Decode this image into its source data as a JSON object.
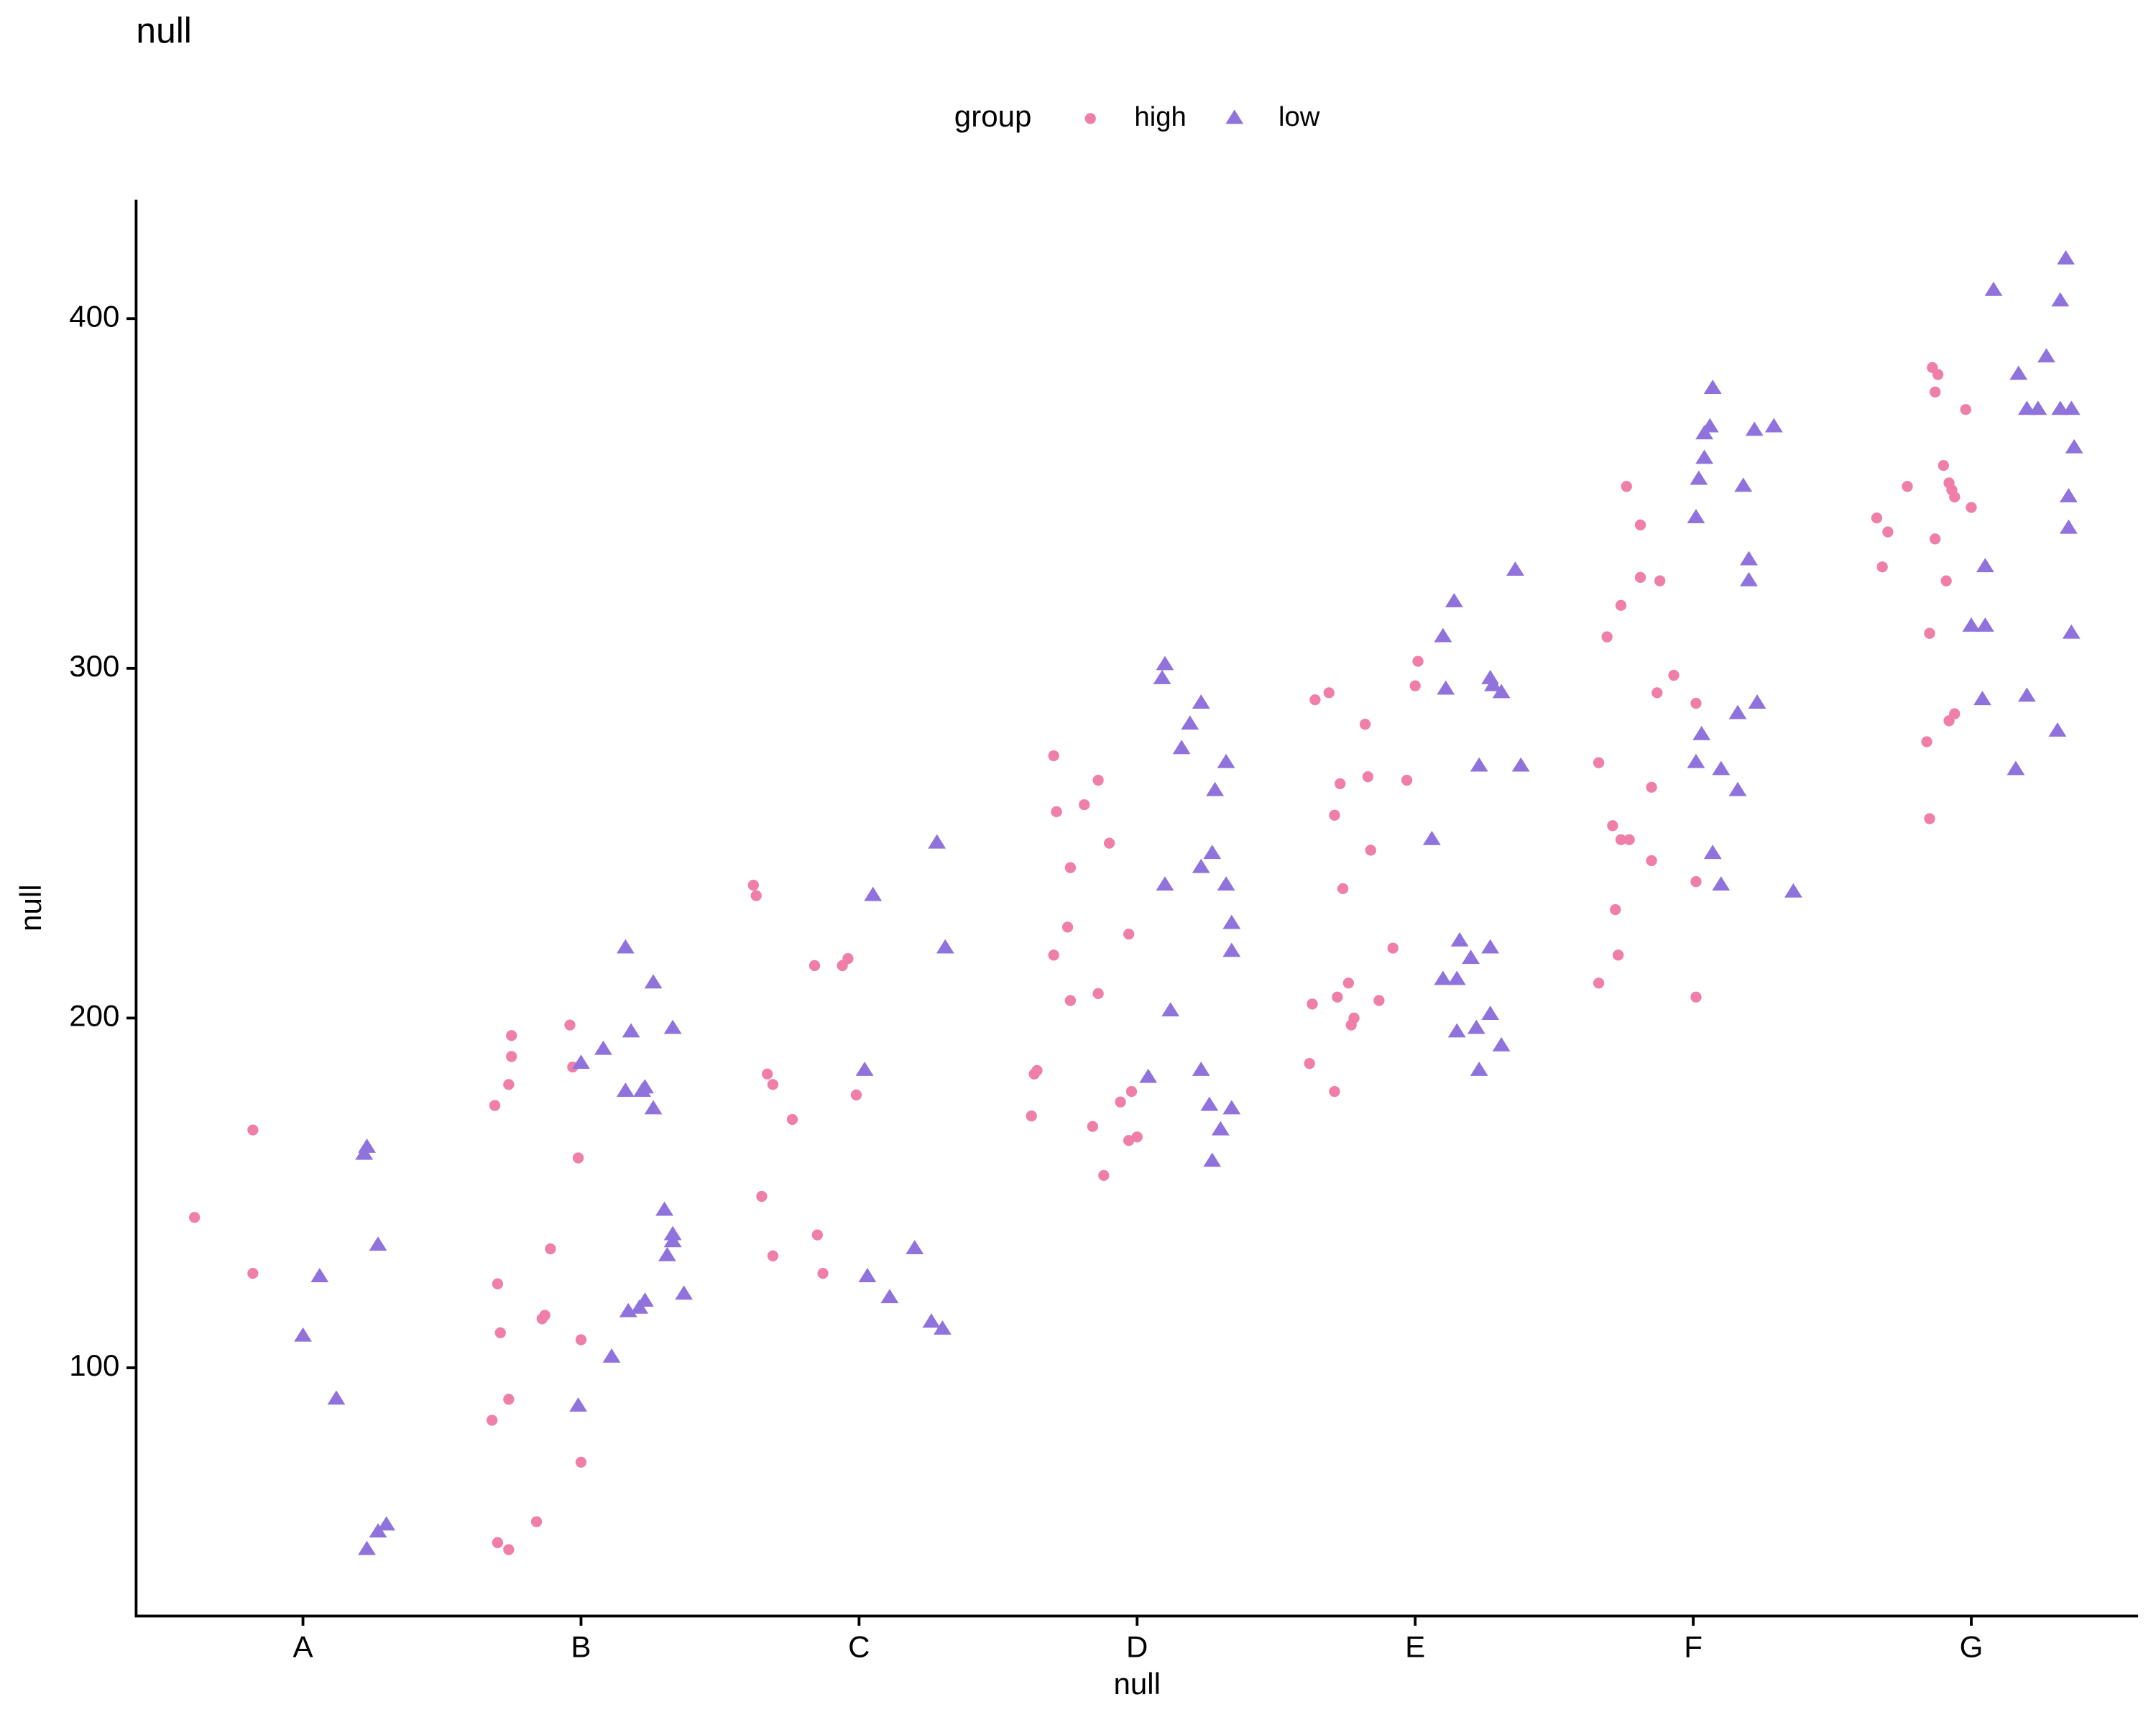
{
  "chart_data": {
    "type": "scatter",
    "title": "null",
    "x_label": "null",
    "y_label": "null",
    "legend_title": "group",
    "legend_position": "top",
    "xlim": [
      0.4,
      7.6
    ],
    "xticks": [
      {
        "value": 1,
        "label": "A"
      },
      {
        "value": 2,
        "label": "B"
      },
      {
        "value": 3,
        "label": "C"
      },
      {
        "value": 4,
        "label": "D"
      },
      {
        "value": 5,
        "label": "E"
      },
      {
        "value": 6,
        "label": "F"
      },
      {
        "value": 7,
        "label": "G"
      }
    ],
    "ylim": [
      29,
      434
    ],
    "yticks": [
      100,
      200,
      300,
      400
    ],
    "grid": false,
    "series": [
      {
        "name": "high",
        "color": "#ef7fa8",
        "shape": "circle",
        "x": [
          0.61,
          0.82,
          0.82,
          1.75,
          1.75,
          1.74,
          1.69,
          1.96,
          1.97,
          1.99,
          1.89,
          1.7,
          1.71,
          1.86,
          1.87,
          2.0,
          1.74,
          1.68,
          2.0,
          1.84,
          1.7,
          1.74,
          2.62,
          2.63,
          2.84,
          2.94,
          2.96,
          2.67,
          2.69,
          2.76,
          2.99,
          2.65,
          2.85,
          2.69,
          2.87,
          3.7,
          3.71,
          3.86,
          3.81,
          3.9,
          3.76,
          3.75,
          3.7,
          3.97,
          3.76,
          3.86,
          3.64,
          3.63,
          3.62,
          3.98,
          3.94,
          3.84,
          3.97,
          4.0,
          3.88,
          5.01,
          5.0,
          4.69,
          4.64,
          4.82,
          4.73,
          4.83,
          4.97,
          4.71,
          4.84,
          4.74,
          4.92,
          4.63,
          4.72,
          4.76,
          4.87,
          4.78,
          4.77,
          4.62,
          4.71,
          5.76,
          5.81,
          5.81,
          5.88,
          5.74,
          5.69,
          5.93,
          5.87,
          6.01,
          5.66,
          5.85,
          5.71,
          5.74,
          5.77,
          5.85,
          6.01,
          5.72,
          5.73,
          5.66,
          6.01,
          6.86,
          6.88,
          6.87,
          6.98,
          6.9,
          6.92,
          6.77,
          6.93,
          6.94,
          7.0,
          6.66,
          6.7,
          6.87,
          6.68,
          6.91,
          6.85,
          6.94,
          6.92,
          6.84,
          6.85
        ],
        "values": [
          143,
          168,
          127,
          195,
          189,
          181,
          175,
          198,
          186,
          160,
          134,
          124,
          110,
          114,
          115,
          108,
          91,
          85,
          73,
          56,
          50,
          48,
          238,
          235,
          215,
          215,
          217,
          184,
          181,
          171,
          178,
          149,
          138,
          132,
          127,
          275,
          259,
          268,
          261,
          250,
          243,
          226,
          218,
          224,
          205,
          207,
          185,
          184,
          172,
          179,
          176,
          169,
          165,
          166,
          155,
          302,
          295,
          293,
          291,
          284,
          267,
          269,
          268,
          258,
          248,
          237,
          220,
          204,
          206,
          210,
          205,
          200,
          198,
          187,
          179,
          352,
          341,
          326,
          325,
          318,
          309,
          298,
          293,
          290,
          273,
          266,
          255,
          251,
          251,
          245,
          239,
          231,
          218,
          210,
          206,
          386,
          384,
          379,
          374,
          358,
          353,
          352,
          351,
          349,
          346,
          343,
          339,
          337,
          329,
          325,
          310,
          287,
          285,
          279,
          257
        ]
      },
      {
        "name": "low",
        "color": "#9072dc",
        "shape": "triangle",
        "x": [
          1.23,
          1.22,
          1.06,
          1.0,
          1.27,
          1.12,
          1.3,
          1.27,
          1.23,
          2.16,
          2.26,
          2.18,
          2.08,
          2.0,
          2.33,
          2.23,
          2.22,
          2.16,
          2.26,
          2.3,
          2.33,
          2.33,
          2.31,
          2.37,
          2.23,
          2.21,
          2.17,
          2.11,
          1.99,
          3.28,
          3.31,
          3.05,
          3.02,
          3.2,
          3.03,
          3.11,
          3.26,
          3.3,
          4.1,
          4.09,
          4.23,
          4.19,
          4.16,
          4.32,
          4.28,
          4.27,
          4.23,
          4.1,
          4.32,
          4.34,
          4.34,
          4.12,
          4.04,
          4.23,
          4.26,
          4.34,
          4.3,
          4.27,
          5.36,
          5.14,
          5.1,
          5.27,
          5.28,
          5.11,
          5.31,
          5.23,
          5.38,
          5.06,
          5.16,
          5.27,
          5.2,
          5.1,
          5.15,
          5.27,
          5.22,
          5.15,
          5.31,
          5.23,
          6.07,
          6.06,
          6.04,
          6.29,
          6.22,
          6.04,
          6.02,
          6.18,
          6.01,
          6.2,
          6.2,
          6.23,
          6.16,
          6.03,
          6.01,
          6.1,
          6.16,
          6.07,
          6.1,
          6.36,
          7.34,
          7.08,
          7.32,
          7.27,
          7.17,
          7.2,
          7.24,
          7.32,
          7.36,
          7.37,
          7.35,
          7.35,
          7.05,
          7.0,
          7.05,
          7.36,
          7.04,
          7.2,
          7.31,
          7.16
        ],
        "values": [
          163,
          161,
          126,
          109,
          135,
          91,
          55,
          53,
          48,
          220,
          210,
          196,
          191,
          187,
          197,
          180,
          179,
          179,
          174,
          145,
          138,
          136,
          132,
          121,
          119,
          117,
          116,
          103,
          89,
          250,
          220,
          235,
          185,
          134,
          126,
          120,
          113,
          111,
          301,
          297,
          290,
          284,
          277,
          273,
          265,
          247,
          243,
          238,
          238,
          227,
          219,
          202,
          183,
          185,
          175,
          174,
          168,
          159,
          328,
          319,
          309,
          297,
          295,
          294,
          293,
          272,
          272,
          251,
          222,
          220,
          217,
          211,
          211,
          201,
          197,
          196,
          192,
          185,
          380,
          369,
          367,
          369,
          368,
          360,
          354,
          352,
          343,
          331,
          325,
          290,
          287,
          281,
          273,
          271,
          265,
          247,
          238,
          236,
          417,
          408,
          405,
          389,
          384,
          374,
          374,
          374,
          374,
          363,
          349,
          340,
          329,
          312,
          312,
          310,
          291,
          292,
          282,
          271
        ]
      }
    ]
  }
}
